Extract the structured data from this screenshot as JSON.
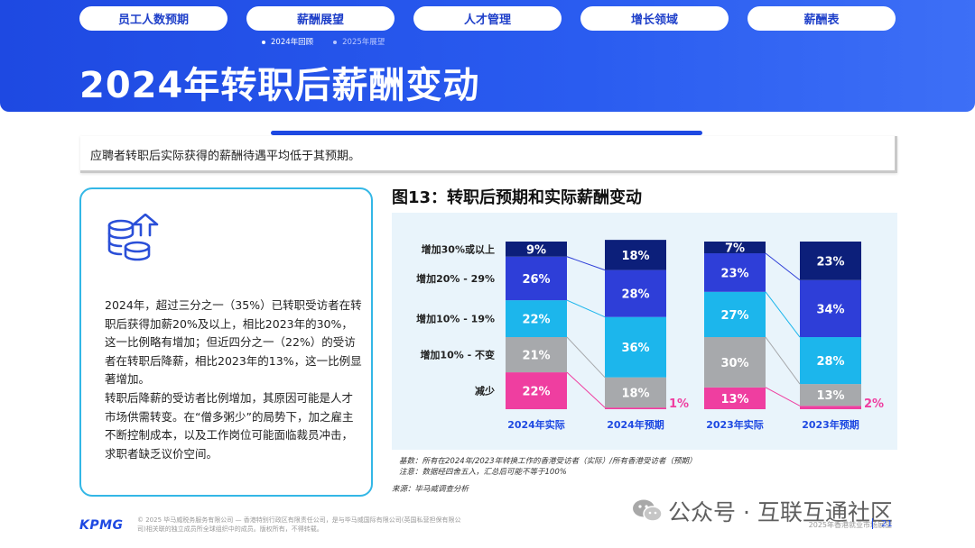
{
  "nav": {
    "tabs": [
      {
        "label": "员工人数预期"
      },
      {
        "label": "薪酬展望"
      },
      {
        "label": "人才管理"
      },
      {
        "label": "增长领域"
      },
      {
        "label": "薪酬表"
      }
    ],
    "subtabs": [
      {
        "label": "2024年回顾"
      },
      {
        "label": "2025年展望"
      }
    ]
  },
  "page_title": "2024年转职后薪酬变动",
  "summary": "应聘者转职后实际获得的薪酬待遇平均低于其预期。",
  "card": {
    "icon": "coins-arrow-up-icon",
    "paragraph1": "2024年，超过三分之一（35%）已转职受访者在转职后获得加薪20%及以上，相比2023年的30%，这一比例略有增加；但近四分之一（22%）的受访者在转职后降薪，相比2023年的13%，这一比例显著增加。",
    "paragraph2": "转职后降薪的受访者比例增加，其原因可能是人才市场供需转变。在“僧多粥少”的局势下，加之雇主不断控制成本，以及工作岗位可能面临裁员冲击，求职者缺乏议价空间。"
  },
  "figure_title": "图13：转职后预期和实际薪酬变动",
  "chart_data": {
    "type": "bar",
    "stacked": true,
    "normalized_to": 100,
    "categories": [
      "2024年实际",
      "2024年预期",
      "2023年实际",
      "2023年预期"
    ],
    "series": [
      {
        "name": "减少",
        "color": "#ef3ea0",
        "values": [
          22,
          1,
          13,
          2
        ],
        "labels": [
          "22%",
          "1%",
          "13%",
          "2%"
        ]
      },
      {
        "name": "增加10% - 不变",
        "color": "#a7a9ac",
        "values": [
          21,
          18,
          30,
          13
        ],
        "labels": [
          "21%",
          "18%",
          "30%",
          "13%"
        ]
      },
      {
        "name": "增加10% - 19%",
        "color": "#1cb6ec",
        "values": [
          22,
          36,
          27,
          28
        ],
        "labels": [
          "22%",
          "36%",
          "27%",
          "28%"
        ]
      },
      {
        "name": "增加20% - 29%",
        "color": "#2e3ed8",
        "values": [
          26,
          28,
          23,
          34
        ],
        "labels": [
          "26%",
          "28%",
          "23%",
          "34%"
        ]
      },
      {
        "name": "增加30%或以上",
        "color": "#0c1f7a",
        "values": [
          9,
          18,
          7,
          23
        ],
        "labels": [
          "9%",
          "18%",
          "7%",
          "23%"
        ]
      }
    ],
    "grid": false,
    "legend": "left"
  },
  "notes": {
    "basis": "基数：所有在2024年/2023年转换工作的香港受访者（实际）/所有香港受访者（预期）",
    "note": "注意：数据经四舍五入，汇总后可能不等于100%",
    "source": "来源：毕马威调查分析"
  },
  "footer": {
    "logo": "KPMG",
    "copyright": "© 2025 毕马威税务服务有限公司 — 香港特别行政区有限责任公司，是与毕马威国际有限公司(英国私营担保有限公司)相关联的独立成员所全球组织中的成员。版权所有，不得转载。",
    "watermark": "公众号 · 互联互通社区",
    "report": "2025年香港就业市场展望",
    "page": "21"
  },
  "colors": {
    "brand": "#1e49e2",
    "accent_teal": "#33b7e6"
  }
}
